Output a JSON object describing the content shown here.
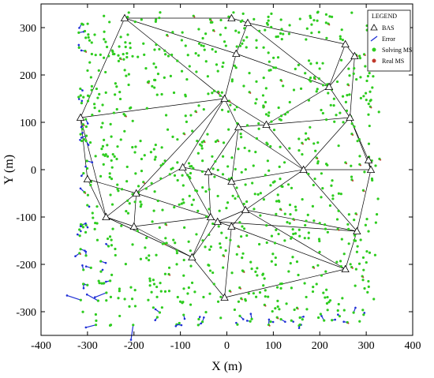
{
  "chart_data": {
    "type": "scatter",
    "title": "",
    "xlabel": "X (m)",
    "ylabel": "Y (m)",
    "xlim": [
      -400,
      400
    ],
    "ylim": [
      -350,
      350
    ],
    "xticks": [
      -400,
      -300,
      -200,
      -100,
      0,
      100,
      200,
      300,
      400
    ],
    "yticks": [
      -300,
      -200,
      -100,
      0,
      100,
      200,
      300
    ],
    "grid": false,
    "legend": {
      "title": "LEGEND",
      "placement": "top-right",
      "entries": [
        "BAS",
        "Error",
        "Solving MS",
        "Real MS"
      ]
    },
    "colors": {
      "bas": "#000000",
      "error": "#1f2fd6",
      "solving": "#2ecc1f",
      "real": "#c0392b",
      "edge": "#000000"
    },
    "bas_stations": [
      [
        -220,
        320
      ],
      [
        10,
        320
      ],
      [
        45,
        310
      ],
      [
        255,
        265
      ],
      [
        275,
        240
      ],
      [
        20,
        245
      ],
      [
        -315,
        110
      ],
      [
        -5,
        150
      ],
      [
        220,
        175
      ],
      [
        265,
        110
      ],
      [
        85,
        95
      ],
      [
        25,
        90
      ],
      [
        305,
        20
      ],
      [
        310,
        0
      ],
      [
        165,
        0
      ],
      [
        -300,
        -20
      ],
      [
        -95,
        5
      ],
      [
        -40,
        -5
      ],
      [
        10,
        -25
      ],
      [
        -195,
        -50
      ],
      [
        -260,
        -100
      ],
      [
        -35,
        -100
      ],
      [
        40,
        -85
      ],
      [
        -200,
        -120
      ],
      [
        280,
        -130
      ],
      [
        -20,
        -110
      ],
      [
        -75,
        -185
      ],
      [
        10,
        -120
      ],
      [
        255,
        -210
      ],
      [
        -5,
        -270
      ]
    ],
    "edges": [
      [
        0,
        1
      ],
      [
        1,
        2
      ],
      [
        2,
        3
      ],
      [
        3,
        4
      ],
      [
        0,
        6
      ],
      [
        0,
        7
      ],
      [
        0,
        5
      ],
      [
        2,
        5
      ],
      [
        2,
        8
      ],
      [
        3,
        8
      ],
      [
        4,
        8
      ],
      [
        4,
        9
      ],
      [
        5,
        7
      ],
      [
        5,
        8
      ],
      [
        6,
        7
      ],
      [
        6,
        15
      ],
      [
        6,
        20
      ],
      [
        7,
        11
      ],
      [
        7,
        10
      ],
      [
        7,
        19
      ],
      [
        7,
        16
      ],
      [
        8,
        9
      ],
      [
        8,
        10
      ],
      [
        9,
        10
      ],
      [
        9,
        12
      ],
      [
        9,
        13
      ],
      [
        10,
        11
      ],
      [
        10,
        14
      ],
      [
        9,
        14
      ],
      [
        11,
        14
      ],
      [
        11,
        17
      ],
      [
        11,
        18
      ],
      [
        13,
        14
      ],
      [
        12,
        13
      ],
      [
        13,
        24
      ],
      [
        14,
        18
      ],
      [
        14,
        22
      ],
      [
        14,
        24
      ],
      [
        15,
        19
      ],
      [
        15,
        20
      ],
      [
        16,
        17
      ],
      [
        16,
        19
      ],
      [
        16,
        21
      ],
      [
        17,
        18
      ],
      [
        17,
        21
      ],
      [
        18,
        22
      ],
      [
        19,
        20
      ],
      [
        19,
        23
      ],
      [
        19,
        21
      ],
      [
        20,
        23
      ],
      [
        20,
        26
      ],
      [
        21,
        23
      ],
      [
        21,
        25
      ],
      [
        21,
        26
      ],
      [
        22,
        25
      ],
      [
        22,
        27
      ],
      [
        22,
        24
      ],
      [
        23,
        26
      ],
      [
        24,
        28
      ],
      [
        25,
        26
      ],
      [
        25,
        27
      ],
      [
        26,
        29
      ],
      [
        27,
        29
      ],
      [
        27,
        28
      ],
      [
        28,
        29
      ],
      [
        22,
        28
      ],
      [
        24,
        25
      ]
    ],
    "solving_ms_count": 950,
    "real_ms_count": 950
  }
}
